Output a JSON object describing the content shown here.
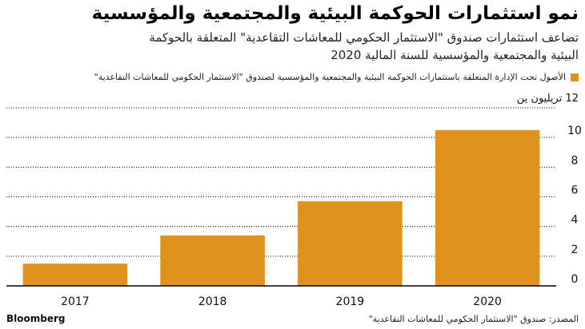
{
  "header": {
    "title": "نمو استثمارات الحوكمة البيئية والمجتمعية والمؤسسية",
    "subtitle": "تضاعف استثمارات صندوق \"الاستثمار الحكومي للمعاشات التقاعدية\" المتعلقة بالحوكمة البيئية والمجتمعية والمؤسسية للسنة المالية 2020"
  },
  "legend": {
    "label": "الأصول تحت الإدارة المتعلقة باستثمارات الحوكمة البيئية والمجتمعية والمؤسسية لصندوق \"الاستثمار الحكومي للمعاشات التقاعدية\""
  },
  "axis": {
    "unit_label": "12 تريليون ين"
  },
  "footer": {
    "source": "المصدر: صندوق \"الاستثمار الحكومي للمعاشات التقاعدية\"",
    "brand": "Bloomberg"
  },
  "colors": {
    "bar": "#E0921F",
    "grid": "#000000",
    "text": "#111111"
  },
  "chart_data": {
    "type": "bar",
    "categories": [
      "2017",
      "2018",
      "2019",
      "2020"
    ],
    "series": [
      {
        "values": [
          1.5,
          3.4,
          5.7,
          10.5
        ]
      }
    ],
    "ylim": [
      0,
      12
    ],
    "yticks": [
      0,
      2,
      4,
      6,
      8,
      10
    ],
    "grid": true,
    "legend_position": "top"
  }
}
